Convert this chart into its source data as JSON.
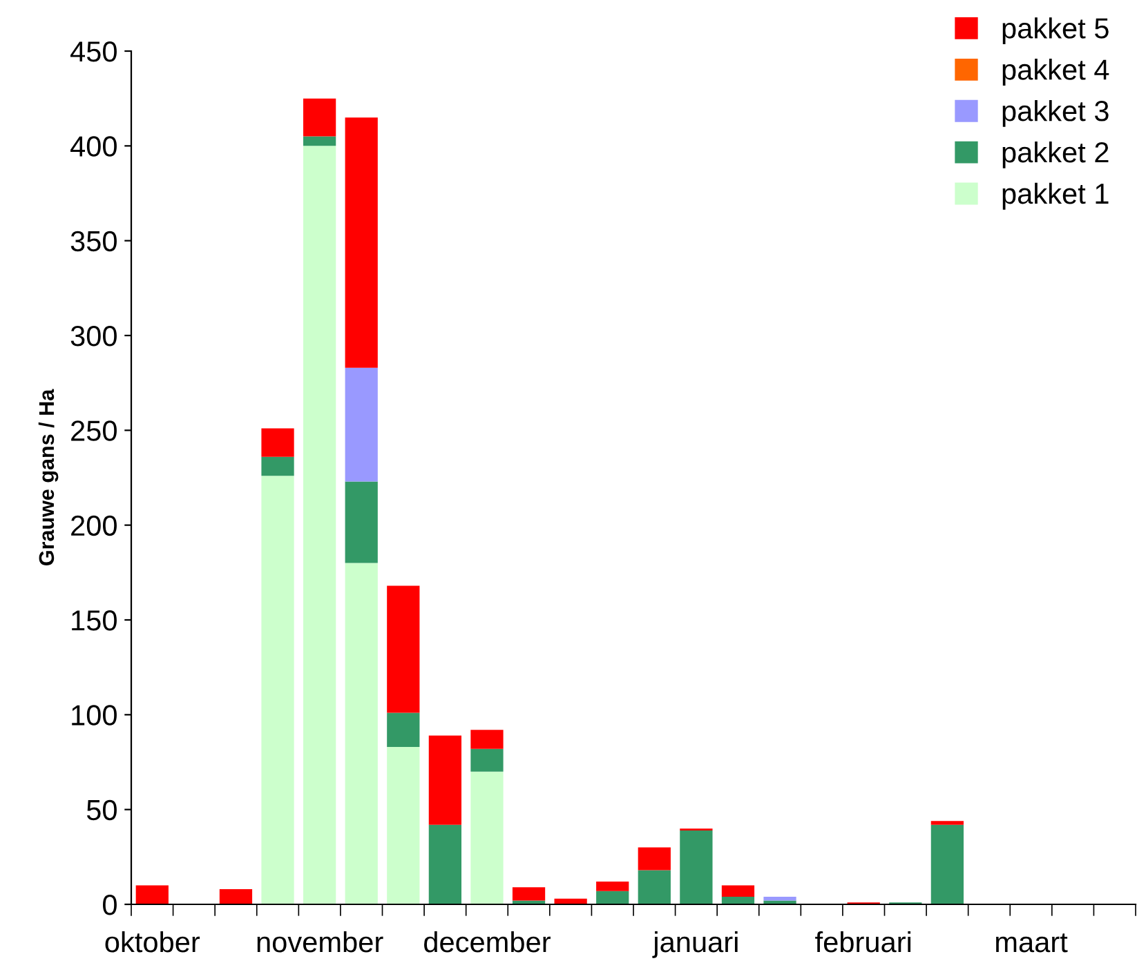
{
  "chart_data": {
    "type": "bar",
    "stacked": true,
    "ylabel": "Grauwe gans / Ha",
    "categories": [
      "oktober",
      null,
      null,
      null,
      "november",
      null,
      null,
      null,
      "december",
      null,
      null,
      null,
      null,
      "januari",
      null,
      null,
      null,
      "februari",
      null,
      null,
      null,
      "maart",
      null,
      null
    ],
    "series": [
      {
        "name": "pakket 1",
        "color": "#ccffcc",
        "values": [
          null,
          null,
          null,
          226,
          400,
          180,
          83,
          null,
          70,
          null,
          null,
          null,
          null,
          null,
          null,
          null,
          null,
          null,
          null,
          null,
          null,
          null,
          null,
          null
        ]
      },
      {
        "name": "pakket 2",
        "color": "#339966",
        "values": [
          null,
          null,
          null,
          10,
          5,
          43,
          18,
          42,
          12,
          2,
          null,
          7,
          18,
          39,
          4,
          2,
          null,
          null,
          1,
          42,
          null,
          null,
          null,
          null
        ]
      },
      {
        "name": "pakket 3",
        "color": "#9999ff",
        "values": [
          null,
          null,
          null,
          null,
          null,
          60,
          null,
          null,
          null,
          null,
          null,
          null,
          null,
          null,
          null,
          2,
          null,
          null,
          null,
          null,
          null,
          null,
          null,
          null
        ]
      },
      {
        "name": "pakket 4",
        "color": "#ff6600",
        "values": [
          null,
          null,
          null,
          null,
          null,
          null,
          null,
          null,
          null,
          null,
          null,
          null,
          null,
          null,
          null,
          null,
          null,
          null,
          null,
          null,
          null,
          null,
          null,
          null
        ]
      },
      {
        "name": "pakket 5",
        "color": "#ff0000",
        "values": [
          10,
          null,
          8,
          15,
          20,
          132,
          67,
          47,
          10,
          7,
          3,
          5,
          12,
          1,
          6,
          null,
          null,
          1,
          null,
          2,
          null,
          null,
          null,
          null
        ]
      }
    ],
    "ylim": [
      0,
      450
    ],
    "yticks": [
      0,
      50,
      100,
      150,
      200,
      250,
      300,
      350,
      400,
      450
    ],
    "grid": false,
    "legend": "top right"
  }
}
